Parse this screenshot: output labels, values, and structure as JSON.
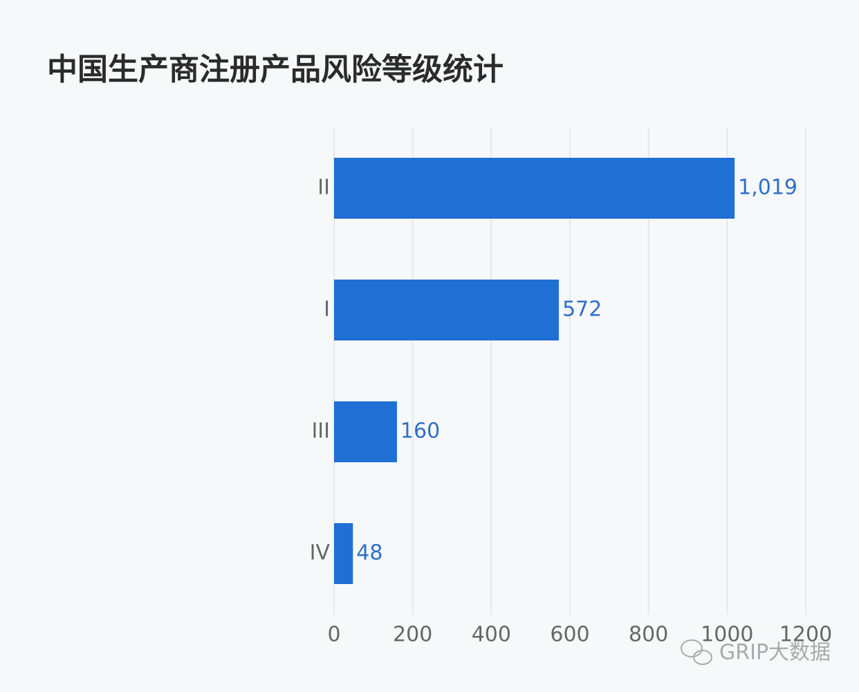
{
  "chart_data": {
    "type": "barh",
    "title": "中国生产商注册产品风险等级统计",
    "categories": [
      "II",
      "I",
      "III",
      "IV"
    ],
    "values": [
      1019,
      572,
      160,
      48
    ],
    "value_labels": [
      "1,019",
      "572",
      "160",
      "48"
    ],
    "color": "#206fd4",
    "xlim": [
      0,
      1200
    ],
    "xticks": [
      0,
      200,
      400,
      600,
      800,
      1000,
      1200
    ],
    "grid": true,
    "watermark": "GRIP大数据"
  }
}
